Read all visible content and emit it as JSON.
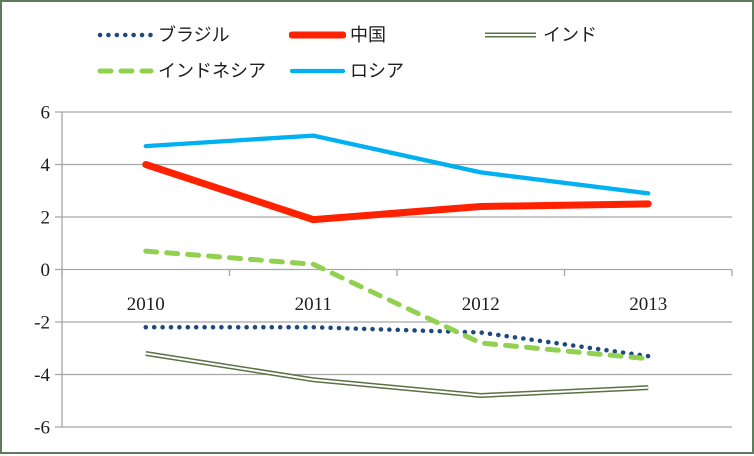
{
  "chart_data": {
    "type": "line",
    "title": "",
    "xlabel": "",
    "ylabel": "",
    "categories": [
      "2010",
      "2011",
      "2012",
      "2013"
    ],
    "series": [
      {
        "id": "brazil",
        "name": "ブラジル",
        "values": [
          -2.2,
          -2.2,
          -2.4,
          -3.3
        ],
        "color": "#1F497D",
        "style": "dotted"
      },
      {
        "id": "china",
        "name": "中国",
        "values": [
          4.0,
          1.9,
          2.4,
          2.5
        ],
        "color": "#FF2200",
        "style": "solid-thick"
      },
      {
        "id": "india",
        "name": "インド",
        "values": [
          -3.2,
          -4.2,
          -4.8,
          -4.5
        ],
        "color": "#5C7144",
        "style": "double"
      },
      {
        "id": "indonesia",
        "name": "インドネシア",
        "values": [
          0.7,
          0.2,
          -2.8,
          -3.4
        ],
        "color": "#92D050",
        "style": "dashed"
      },
      {
        "id": "russia",
        "name": "ロシア",
        "values": [
          4.7,
          5.1,
          3.7,
          2.9
        ],
        "color": "#00B0F0",
        "style": "solid"
      }
    ],
    "yticks": [
      6,
      4,
      2,
      0,
      -2,
      -4,
      -6
    ],
    "ylim": [
      -6,
      6
    ],
    "grid": true,
    "legend_position": "top"
  },
  "colors": {
    "gridline": "#A6A6A6",
    "axis": "#A6A6A6",
    "tick_text": "#1d1d1d",
    "frame_border": "#5E7B5E",
    "background": "#FFFFFF"
  }
}
